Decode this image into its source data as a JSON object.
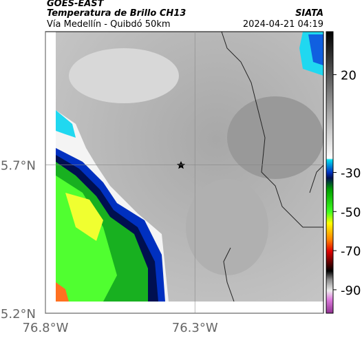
{
  "header": {
    "source": "GOES-EAST",
    "title": "Temperatura de Brillo CH13",
    "subtitle": "Vía Medellín - Quibdó 50km",
    "agency": "SIATA",
    "datetime": "2024-04-21 04:19"
  },
  "map": {
    "xlim": [
      -76.8,
      -75.87
    ],
    "ylim": [
      5.2,
      6.15
    ],
    "xticks": [
      {
        "value": -76.8,
        "label": "76.8°W"
      },
      {
        "value": -76.3,
        "label": "76.3°W"
      }
    ],
    "yticks": [
      {
        "value": 5.7,
        "label": "5.7°N"
      },
      {
        "value": 5.2,
        "label": "5.2°N"
      }
    ]
  },
  "colorbar": {
    "lim": [
      -102,
      42
    ],
    "ticks": [
      20,
      -30,
      -50,
      -70,
      -90
    ]
  }
}
